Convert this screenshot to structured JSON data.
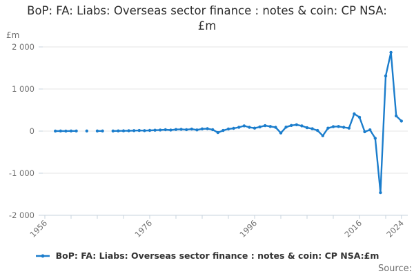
{
  "title": "BoP: FA: Liabs: Overseas sector finance : notes & coin: CP NSA:£m",
  "y_unit": "£m",
  "source_label": "Source:",
  "legend": {
    "label": "BoP: FA: Liabs: Overseas sector finance : notes & coin: CP NSA:£m",
    "marker": "line-dot"
  },
  "colors": {
    "line": "#1b7dcc",
    "grid": "#e6e6e6",
    "axis": "#c7d3de",
    "muted_text": "#707070",
    "title_text": "#2e2e2e"
  },
  "chart_data": {
    "type": "line",
    "title": "BoP: FA: Liabs: Overseas sector finance : notes & coin: CP NSA:£m",
    "xlabel": "",
    "ylabel": "£m",
    "xlim": [
      1956,
      2024.5
    ],
    "ylim": [
      -2000,
      2000
    ],
    "grid": "horizontal",
    "legend_position": "bottom",
    "y_tick_values": [
      2000,
      1000,
      0,
      -1000,
      -2000
    ],
    "y_tick_labels": [
      "2 000",
      "1 000",
      "0",
      "-1 000",
      "-2 000"
    ],
    "x_labeled_ticks": [
      1956,
      1976,
      1996,
      2016,
      2024
    ],
    "x_minor_tick_step": 5,
    "x_axis_end_tick": 2024,
    "series": [
      {
        "name": "BoP: FA: Liabs: Overseas sector finance : notes & coin: CP NSA:£m",
        "color": "#1b7dcc",
        "points": [
          [
            1958,
            2
          ],
          [
            1959,
            3
          ],
          [
            1960,
            2
          ],
          [
            1961,
            3
          ],
          [
            1962,
            3
          ],
          [
            1964,
            3
          ],
          [
            1966,
            3
          ],
          [
            1967,
            4
          ],
          [
            1969,
            3
          ],
          [
            1970,
            5
          ],
          [
            1971,
            7
          ],
          [
            1972,
            9
          ],
          [
            1973,
            12
          ],
          [
            1974,
            15
          ],
          [
            1975,
            12
          ],
          [
            1976,
            17
          ],
          [
            1977,
            22
          ],
          [
            1978,
            27
          ],
          [
            1979,
            32
          ],
          [
            1980,
            25
          ],
          [
            1981,
            38
          ],
          [
            1982,
            42
          ],
          [
            1983,
            35
          ],
          [
            1984,
            48
          ],
          [
            1985,
            28
          ],
          [
            1986,
            52
          ],
          [
            1987,
            58
          ],
          [
            1988,
            35
          ],
          [
            1989,
            -35
          ],
          [
            1990,
            15
          ],
          [
            1991,
            50
          ],
          [
            1992,
            65
          ],
          [
            1993,
            90
          ],
          [
            1994,
            125
          ],
          [
            1995,
            90
          ],
          [
            1996,
            70
          ],
          [
            1997,
            100
          ],
          [
            1998,
            130
          ],
          [
            1999,
            110
          ],
          [
            2000,
            90
          ],
          [
            2001,
            -45
          ],
          [
            2002,
            95
          ],
          [
            2003,
            135
          ],
          [
            2004,
            150
          ],
          [
            2005,
            125
          ],
          [
            2006,
            80
          ],
          [
            2007,
            55
          ],
          [
            2008,
            15
          ],
          [
            2009,
            -110
          ],
          [
            2010,
            70
          ],
          [
            2011,
            105
          ],
          [
            2012,
            110
          ],
          [
            2013,
            90
          ],
          [
            2014,
            70
          ],
          [
            2015,
            410
          ],
          [
            2016,
            330
          ],
          [
            2017,
            -15
          ],
          [
            2018,
            30
          ],
          [
            2019,
            -170
          ],
          [
            2020,
            -1460
          ],
          [
            2021,
            1310
          ],
          [
            2022,
            1870
          ],
          [
            2023,
            360
          ],
          [
            2024,
            240
          ]
        ]
      }
    ]
  }
}
